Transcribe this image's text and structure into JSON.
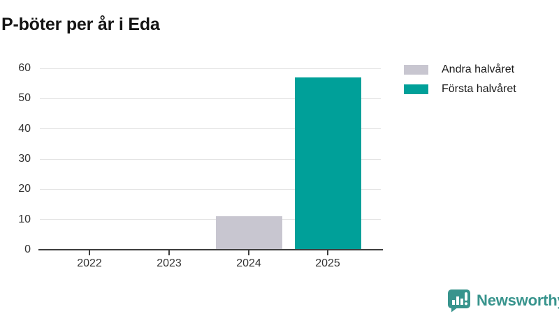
{
  "title": "P-böter per år i Eda",
  "chart_data": {
    "type": "bar",
    "title": "P-böter per år i Eda",
    "categories": [
      "2022",
      "2023",
      "2024",
      "2025"
    ],
    "series": [
      {
        "name": "Andra halvåret",
        "color": "#c8c6d0",
        "values": [
          0,
          0,
          11,
          0
        ]
      },
      {
        "name": "Första halvåret",
        "color": "#00a099",
        "values": [
          0,
          0,
          0,
          57
        ]
      }
    ],
    "xlabel": "",
    "ylabel": "",
    "ylim": [
      0,
      60
    ],
    "yticks": [
      0,
      10,
      20,
      30,
      40,
      50,
      60
    ],
    "grid": true,
    "legend_position": "top-right"
  },
  "legend": {
    "items": [
      {
        "label": "Andra halvåret",
        "color": "#c8c6d0"
      },
      {
        "label": "Första halvåret",
        "color": "#00a099"
      }
    ]
  },
  "footer": {
    "brand": "Newsworthy",
    "brand_color": "#38948d"
  }
}
